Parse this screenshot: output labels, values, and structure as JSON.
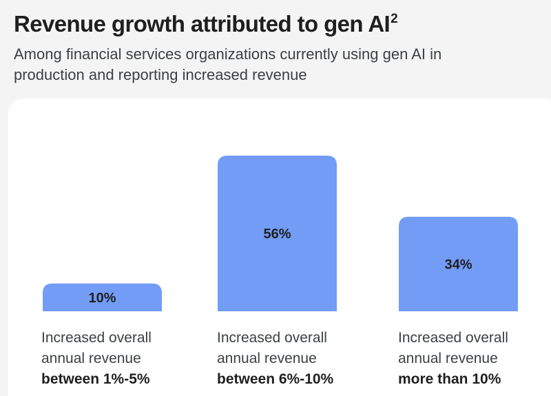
{
  "header": {
    "title": "Revenue growth attributed to gen AI",
    "title_superscript": "2",
    "subtitle": "Among financial services organizations currently using gen AI in production and reporting increased revenue"
  },
  "colors": {
    "bar": "#729cf6",
    "label_text": "#1f1f1f"
  },
  "chart_data": {
    "type": "bar",
    "title": "Revenue growth attributed to gen AI",
    "categories": [
      "Increased overall annual revenue between 1%-5%",
      "Increased overall annual revenue between 6%-10%",
      "Increased overall annual revenue more than 10%"
    ],
    "values": [
      10,
      56,
      34
    ],
    "value_labels": [
      "10%",
      "56%",
      "34%"
    ],
    "xlabel": "",
    "ylabel": "",
    "ylim": [
      0,
      56
    ],
    "grid": false,
    "legend": "none",
    "category_lines": [
      {
        "line1": "Increased overall",
        "line2": "annual revenue",
        "emphasis": "between 1%-5%"
      },
      {
        "line1": "Increased overall",
        "line2": "annual revenue",
        "emphasis": "between 6%-10%"
      },
      {
        "line1": "Increased overall",
        "line2": "annual revenue",
        "emphasis": "more than 10%"
      }
    ]
  }
}
